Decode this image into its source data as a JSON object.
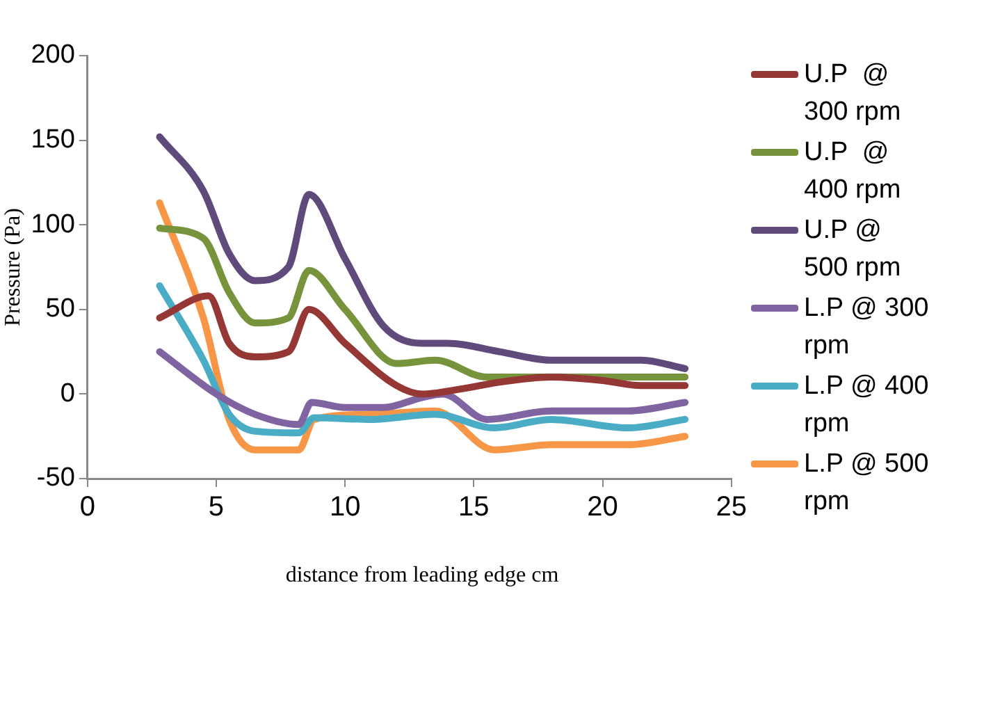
{
  "chart_data": {
    "type": "line",
    "xlabel": "distance from  leading edge cm",
    "ylabel": "Pressure (Pa)",
    "xlim": [
      0,
      25
    ],
    "xticks": [
      0,
      5,
      10,
      15,
      20,
      25
    ],
    "ylim": [
      -50,
      200
    ],
    "yticks": [
      -50,
      0,
      50,
      100,
      150,
      200
    ],
    "grid": false,
    "legend": "right",
    "marker": "none",
    "series": [
      {
        "name": "U.P  @ 300 rpm",
        "color": "#953735",
        "x": [
          2.8,
          4.7,
          5.5,
          6.5,
          7.8,
          8.6,
          10,
          12,
          13,
          14.5,
          16,
          18,
          20,
          21.5,
          23.2
        ],
        "values": [
          45,
          58,
          30,
          22,
          25,
          50,
          30,
          5,
          0,
          3,
          7,
          10,
          8,
          5,
          5
        ]
      },
      {
        "name": "U.P  @ 400 rpm",
        "color": "#77933c",
        "x": [
          2.8,
          4.5,
          5.5,
          6.5,
          7.8,
          8.6,
          10,
          12,
          13.5,
          15.5,
          18,
          23.2
        ],
        "values": [
          98,
          92,
          60,
          42,
          45,
          73,
          50,
          18,
          20,
          10,
          10,
          10
        ]
      },
      {
        "name": "U.P @ 500 rpm",
        "color": "#604a7b",
        "x": [
          2.8,
          4.5,
          5.5,
          6.5,
          7.8,
          8.6,
          10,
          11.5,
          13,
          14,
          16,
          18,
          20,
          21.5,
          23.2
        ],
        "values": [
          152,
          120,
          83,
          67,
          75,
          118,
          80,
          40,
          30,
          30,
          25,
          20,
          20,
          20,
          15
        ]
      },
      {
        "name": "L.P @ 300 rpm",
        "color": "#8064a2",
        "x": [
          2.8,
          5,
          6.5,
          8.2,
          8.7,
          10,
          11.5,
          13,
          13.8,
          15.5,
          18,
          21,
          23.2
        ],
        "values": [
          25,
          0,
          -12,
          -18,
          -5,
          -8,
          -8,
          -2,
          0,
          -15,
          -10,
          -10,
          -5
        ]
      },
      {
        "name": "L.P @ 400 rpm",
        "color": "#4bacc6",
        "x": [
          2.8,
          4.5,
          5.5,
          6.5,
          8.2,
          8.8,
          11,
          13.5,
          15.8,
          18,
          21,
          23.2
        ],
        "values": [
          64,
          20,
          -12,
          -22,
          -23,
          -14,
          -15,
          -12,
          -20,
          -15,
          -20,
          -15
        ]
      },
      {
        "name": "L.P @ 500 rpm",
        "color": "#f79646",
        "x": [
          2.8,
          4.5,
          5.5,
          6.5,
          8.2,
          8.8,
          11,
          13.5,
          15.8,
          18,
          21,
          23.2
        ],
        "values": [
          113,
          45,
          -15,
          -33,
          -33,
          -15,
          -12,
          -10,
          -33,
          -30,
          -30,
          -25
        ]
      }
    ]
  }
}
